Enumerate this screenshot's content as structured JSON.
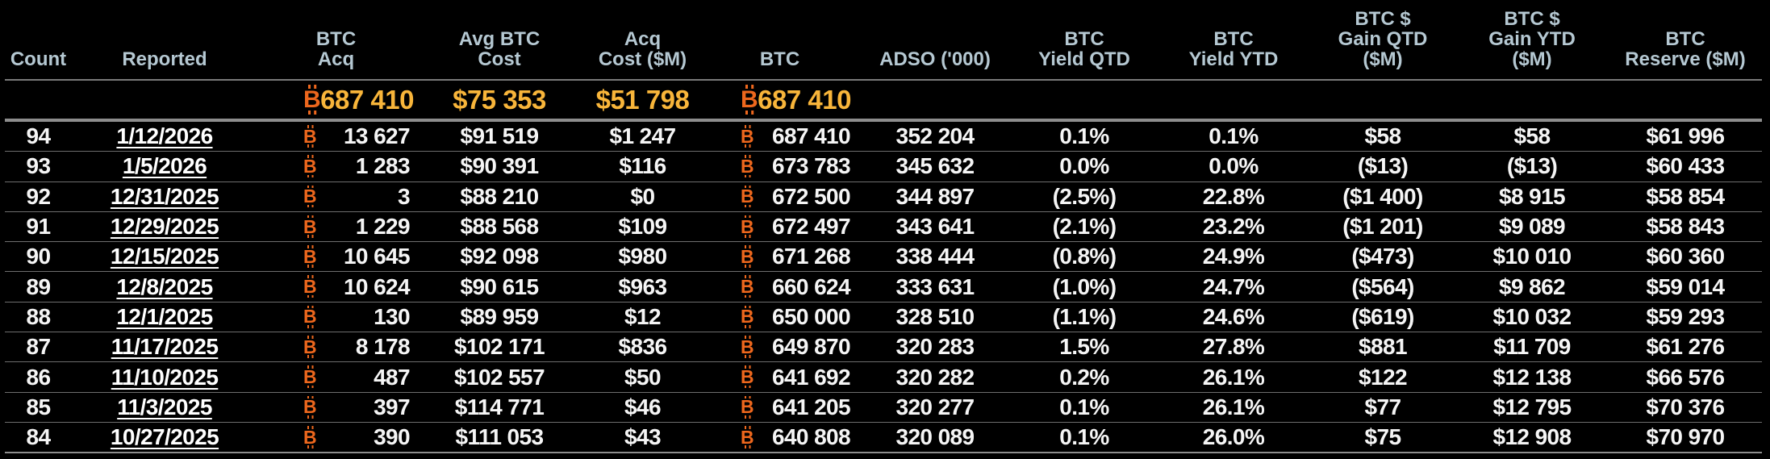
{
  "colors": {
    "background": "#000000",
    "header_text": "#b5c8d2",
    "data_text": "#f5f5f5",
    "summary_amber": "#f8b53a",
    "bitcoin_orange": "#ed671d",
    "row_divider": "#6e6e6e",
    "section_divider": "#8d8d8d"
  },
  "icons": {
    "bitcoin": "₿",
    "bitcoin_glyph": "B"
  },
  "table": {
    "columns": [
      {
        "id": "count",
        "label_lines": [
          "Count"
        ],
        "type": "text"
      },
      {
        "id": "reported",
        "label_lines": [
          "Reported"
        ],
        "type": "link"
      },
      {
        "id": "btc_acq",
        "label_lines": [
          "BTC",
          "Acq"
        ],
        "type": "btc"
      },
      {
        "id": "avg_cost",
        "label_lines": [
          "Avg BTC",
          "Cost"
        ],
        "type": "text"
      },
      {
        "id": "acq_cost",
        "label_lines": [
          "Acq",
          "Cost ($M)"
        ],
        "type": "text"
      },
      {
        "id": "btc",
        "label_lines": [
          "BTC"
        ],
        "type": "btc"
      },
      {
        "id": "adso",
        "label_lines": [
          "ADSO ('000)"
        ],
        "type": "text"
      },
      {
        "id": "yield_qtd",
        "label_lines": [
          "BTC",
          "Yield QTD"
        ],
        "type": "text"
      },
      {
        "id": "yield_ytd",
        "label_lines": [
          "BTC",
          "Yield YTD"
        ],
        "type": "text"
      },
      {
        "id": "gain_qtd",
        "label_lines": [
          "BTC $",
          "Gain QTD",
          "($M)"
        ],
        "type": "text"
      },
      {
        "id": "gain_ytd",
        "label_lines": [
          "BTC $",
          "Gain YTD",
          "($M)"
        ],
        "type": "text"
      },
      {
        "id": "reserve",
        "label_lines": [
          "BTC",
          "Reserve ($M)"
        ],
        "type": "text"
      }
    ],
    "summary": {
      "btc_acq": "687 410",
      "avg_cost": "$75 353",
      "acq_cost": "$51 798",
      "btc": "687 410"
    },
    "rows": [
      {
        "count": "94",
        "reported": "1/12/2026",
        "btc_acq": "13 627",
        "avg_cost": "$91 519",
        "acq_cost": "$1 247",
        "btc": "687 410",
        "adso": "352 204",
        "yield_qtd": "0.1%",
        "yield_ytd": "0.1%",
        "gain_qtd": "$58",
        "gain_ytd": "$58",
        "reserve": "$61 996"
      },
      {
        "count": "93",
        "reported": "1/5/2026",
        "btc_acq": "1 283",
        "avg_cost": "$90 391",
        "acq_cost": "$116",
        "btc": "673 783",
        "adso": "345 632",
        "yield_qtd": "0.0%",
        "yield_ytd": "0.0%",
        "gain_qtd": "($13)",
        "gain_ytd": "($13)",
        "reserve": "$60 433"
      },
      {
        "count": "92",
        "reported": "12/31/2025",
        "btc_acq": "3",
        "avg_cost": "$88 210",
        "acq_cost": "$0",
        "btc": "672 500",
        "adso": "344 897",
        "yield_qtd": "(2.5%)",
        "yield_ytd": "22.8%",
        "gain_qtd": "($1 400)",
        "gain_ytd": "$8 915",
        "reserve": "$58 854"
      },
      {
        "count": "91",
        "reported": "12/29/2025",
        "btc_acq": "1 229",
        "avg_cost": "$88 568",
        "acq_cost": "$109",
        "btc": "672 497",
        "adso": "343 641",
        "yield_qtd": "(2.1%)",
        "yield_ytd": "23.2%",
        "gain_qtd": "($1 201)",
        "gain_ytd": "$9 089",
        "reserve": "$58 843"
      },
      {
        "count": "90",
        "reported": "12/15/2025",
        "btc_acq": "10 645",
        "avg_cost": "$92 098",
        "acq_cost": "$980",
        "btc": "671 268",
        "adso": "338 444",
        "yield_qtd": "(0.8%)",
        "yield_ytd": "24.9%",
        "gain_qtd": "($473)",
        "gain_ytd": "$10 010",
        "reserve": "$60 360"
      },
      {
        "count": "89",
        "reported": "12/8/2025",
        "btc_acq": "10 624",
        "avg_cost": "$90 615",
        "acq_cost": "$963",
        "btc": "660 624",
        "adso": "333 631",
        "yield_qtd": "(1.0%)",
        "yield_ytd": "24.7%",
        "gain_qtd": "($564)",
        "gain_ytd": "$9 862",
        "reserve": "$59 014"
      },
      {
        "count": "88",
        "reported": "12/1/2025",
        "btc_acq": "130",
        "avg_cost": "$89 959",
        "acq_cost": "$12",
        "btc": "650 000",
        "adso": "328 510",
        "yield_qtd": "(1.1%)",
        "yield_ytd": "24.6%",
        "gain_qtd": "($619)",
        "gain_ytd": "$10 032",
        "reserve": "$59 293"
      },
      {
        "count": "87",
        "reported": "11/17/2025",
        "btc_acq": "8 178",
        "avg_cost": "$102 171",
        "acq_cost": "$836",
        "btc": "649 870",
        "adso": "320 283",
        "yield_qtd": "1.5%",
        "yield_ytd": "27.8%",
        "gain_qtd": "$881",
        "gain_ytd": "$11 709",
        "reserve": "$61 276"
      },
      {
        "count": "86",
        "reported": "11/10/2025",
        "btc_acq": "487",
        "avg_cost": "$102 557",
        "acq_cost": "$50",
        "btc": "641 692",
        "adso": "320 282",
        "yield_qtd": "0.2%",
        "yield_ytd": "26.1%",
        "gain_qtd": "$122",
        "gain_ytd": "$12 138",
        "reserve": "$66 576"
      },
      {
        "count": "85",
        "reported": "11/3/2025",
        "btc_acq": "397",
        "avg_cost": "$114 771",
        "acq_cost": "$46",
        "btc": "641 205",
        "adso": "320 277",
        "yield_qtd": "0.1%",
        "yield_ytd": "26.1%",
        "gain_qtd": "$77",
        "gain_ytd": "$12 795",
        "reserve": "$70 376"
      },
      {
        "count": "84",
        "reported": "10/27/2025",
        "btc_acq": "390",
        "avg_cost": "$111 053",
        "acq_cost": "$43",
        "btc": "640 808",
        "adso": "320 089",
        "yield_qtd": "0.1%",
        "yield_ytd": "26.0%",
        "gain_qtd": "$75",
        "gain_ytd": "$12 908",
        "reserve": "$70 970"
      }
    ]
  }
}
